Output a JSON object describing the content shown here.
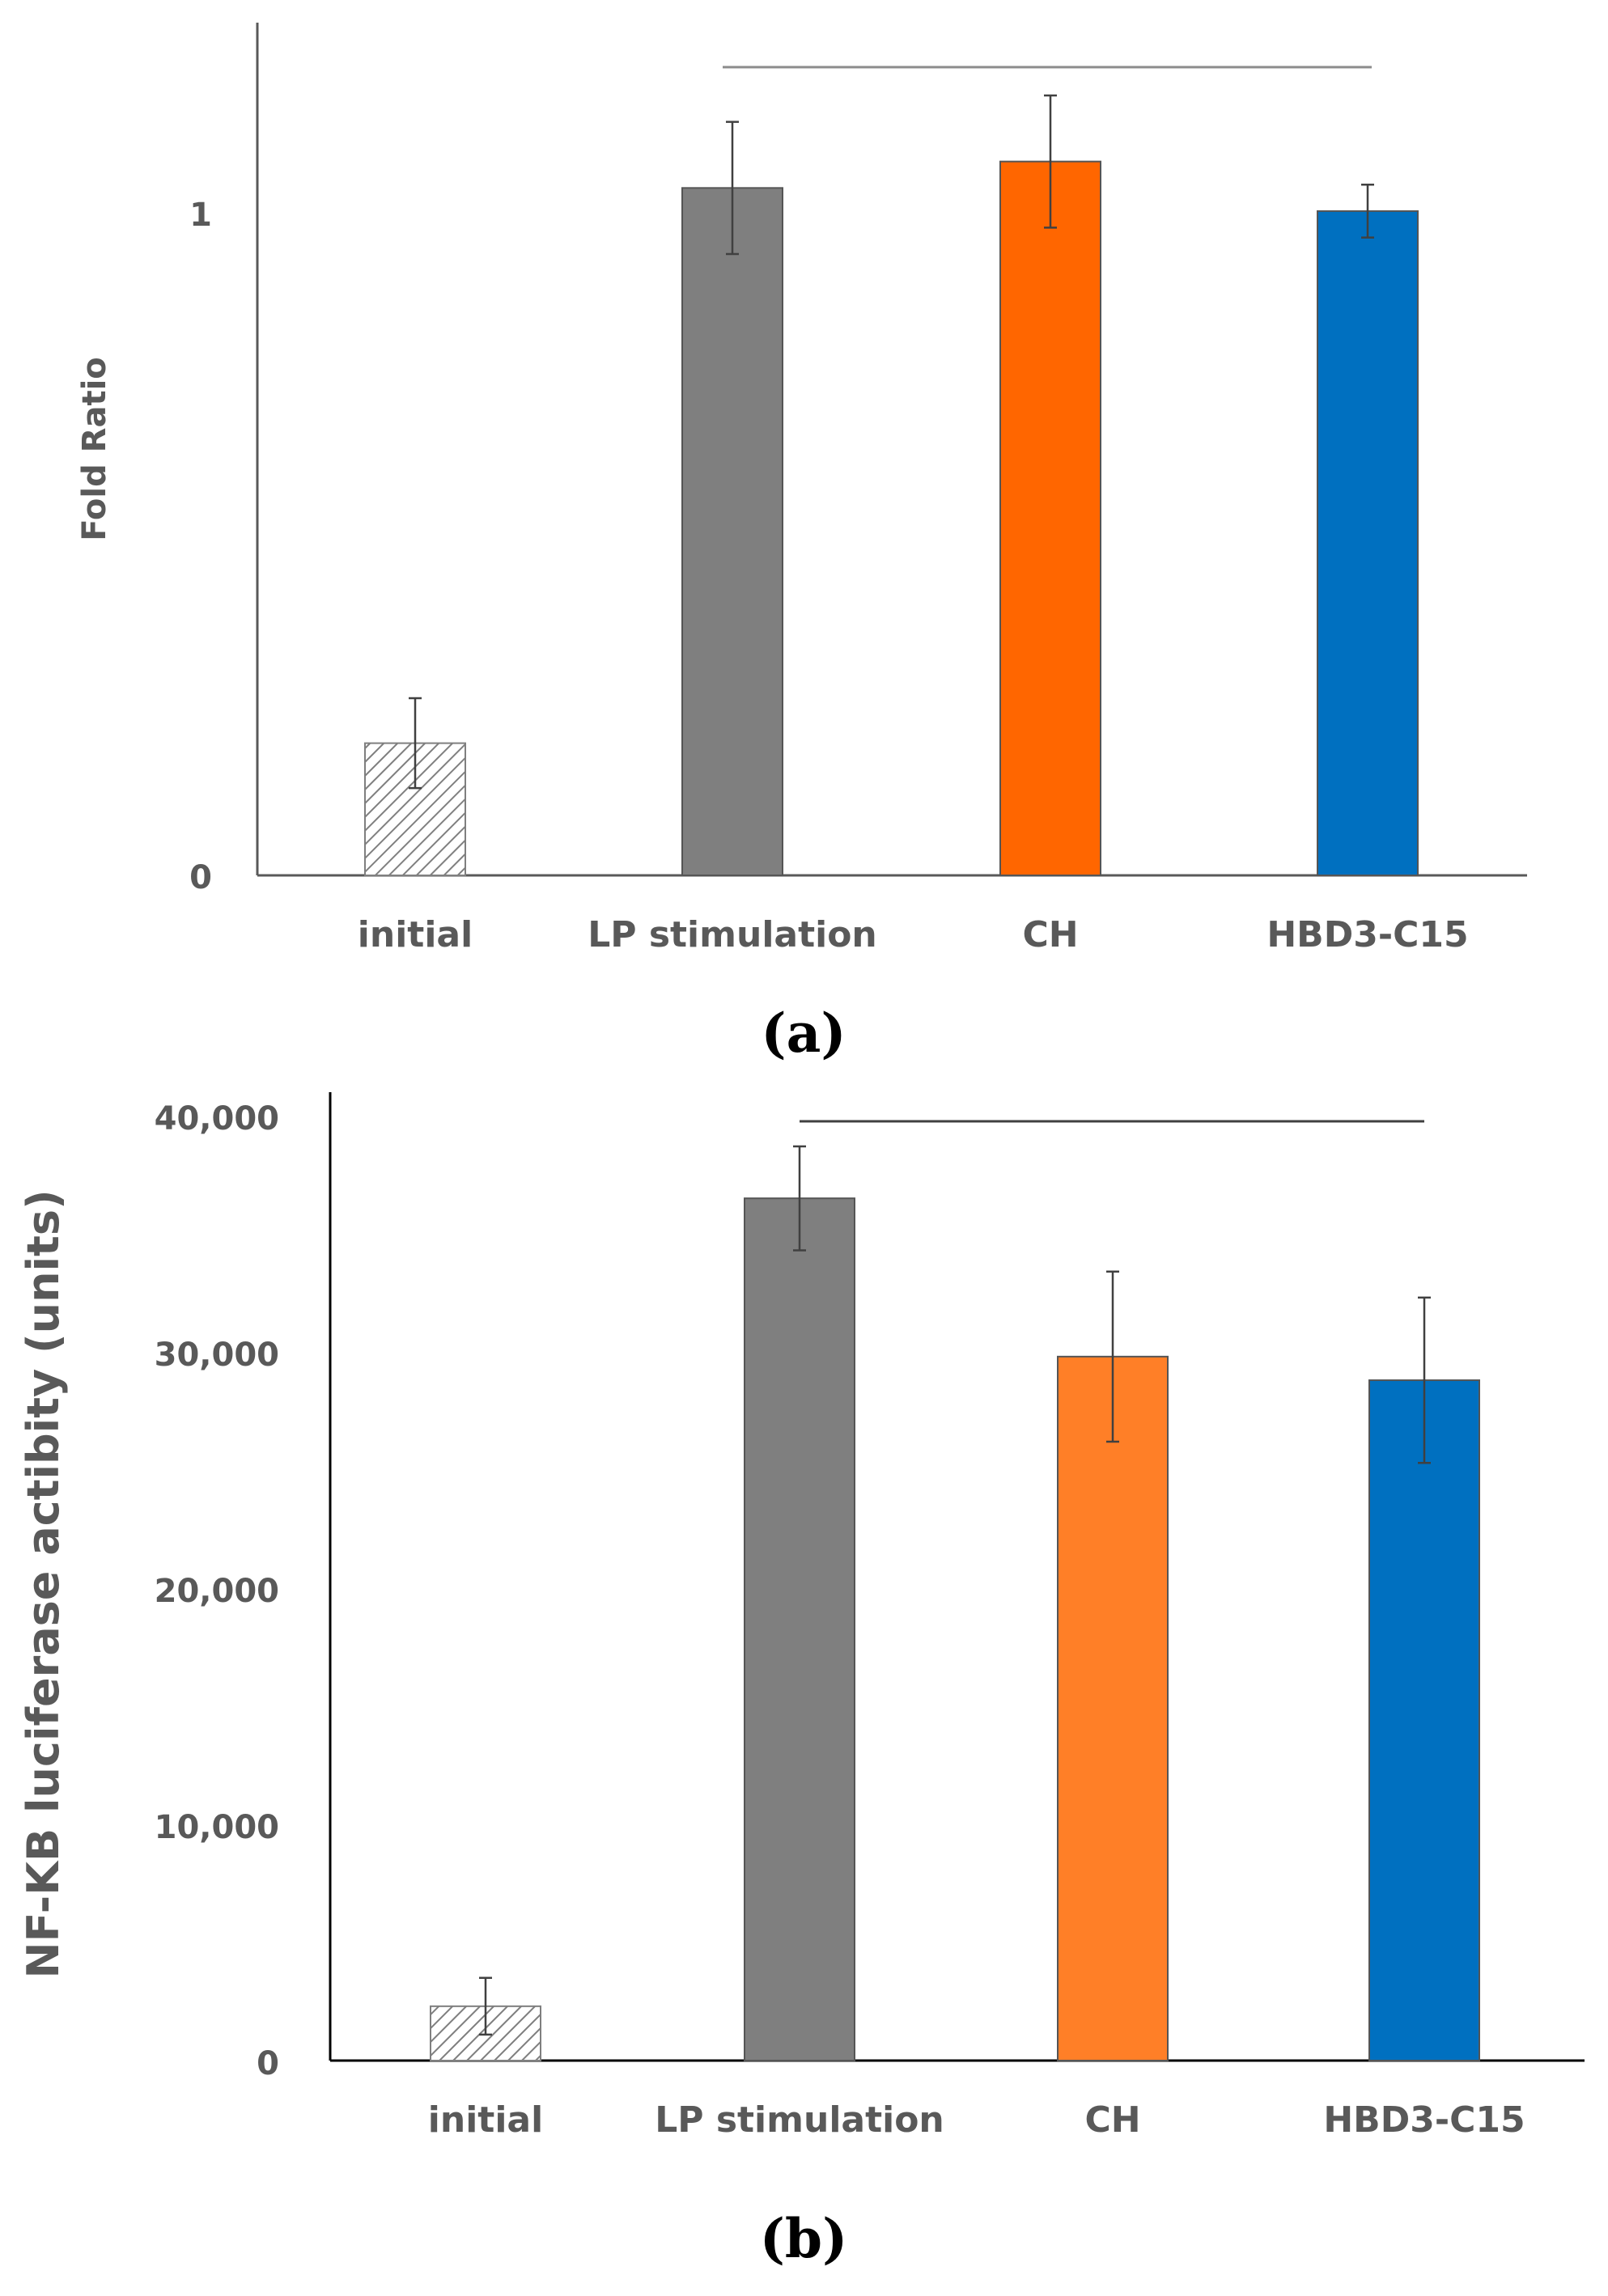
{
  "chart_data": [
    {
      "type": "bar",
      "panel_label": "(a)",
      "ylabel": "Fold Ratio",
      "xlabel": "",
      "ylim": [
        0,
        1.3
      ],
      "yticks": [
        "0",
        "1"
      ],
      "categories": [
        "initial",
        "LP stimulation",
        "CH",
        "HBD3-C15"
      ],
      "values": [
        0.2,
        1.04,
        1.08,
        1.005
      ],
      "errors": [
        0.068,
        0.1,
        0.1,
        0.04
      ],
      "colors": [
        "hatch",
        "#7f7f7f",
        "#ff6600",
        "#0070c0"
      ],
      "bracket": {
        "from": "LP stimulation",
        "to": "HBD3-C15",
        "value": 1.23
      }
    },
    {
      "type": "bar",
      "panel_label": "(b)",
      "ylabel": "NF-KB luciferase actibity (units)",
      "xlabel": "",
      "ylim": [
        0,
        40000
      ],
      "yticks": [
        "0",
        "10,000",
        "20,000",
        "30,000",
        "40,000"
      ],
      "categories": [
        "initial",
        "LP stimulation",
        "CH",
        "HBD3-C15"
      ],
      "values": [
        2300,
        36500,
        29800,
        28800
      ],
      "errors": [
        1200,
        2200,
        3600,
        3500
      ],
      "colors": [
        "hatch",
        "#7f7f7f",
        "#ff7f27",
        "#0070c0"
      ],
      "bracket": {
        "from": "LP stimulation",
        "to": "HBD3-C15",
        "value": 39700
      }
    }
  ]
}
